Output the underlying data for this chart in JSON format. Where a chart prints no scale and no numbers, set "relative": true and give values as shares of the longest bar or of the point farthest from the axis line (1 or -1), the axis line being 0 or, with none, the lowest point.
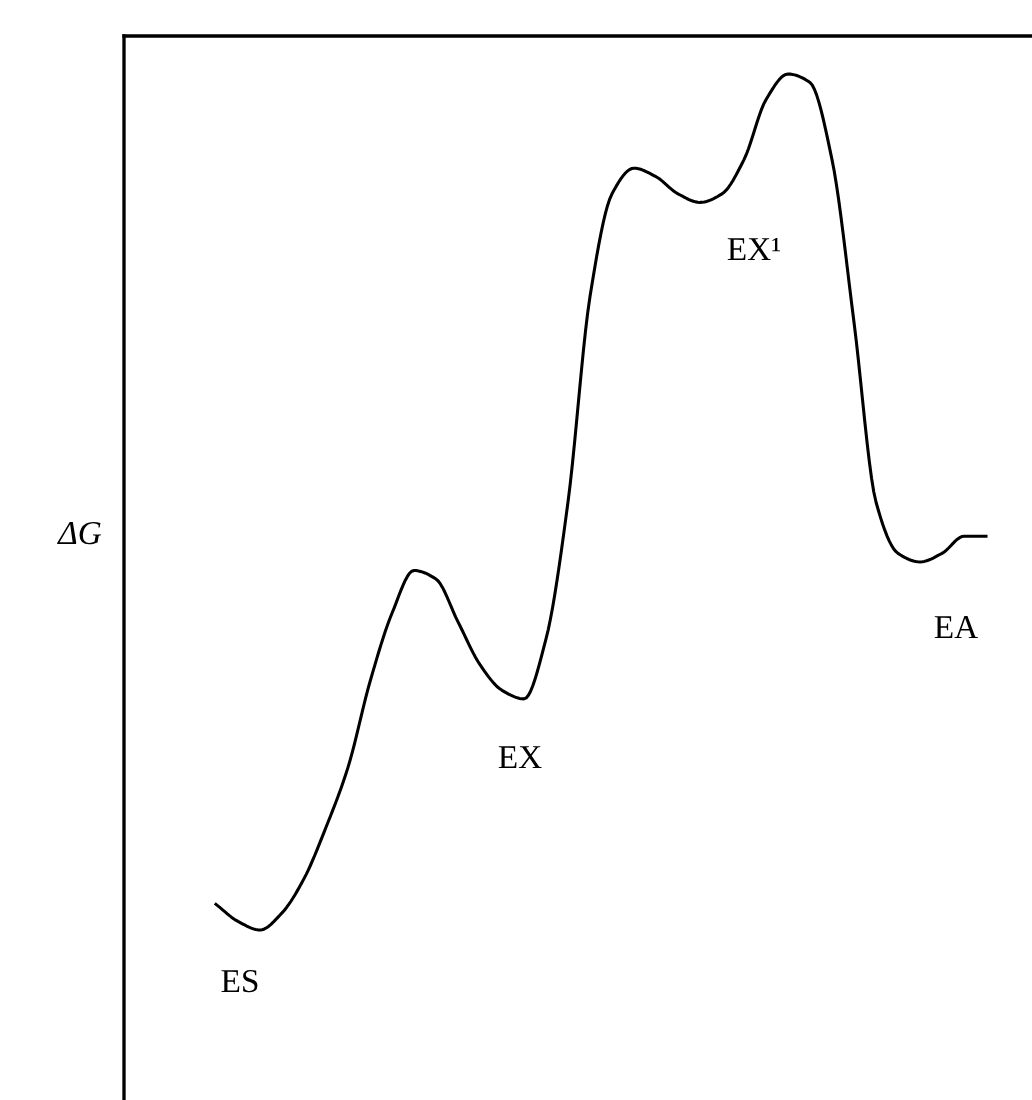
{
  "chart_data": {
    "type": "line",
    "relative": true,
    "ylabel": "ΔG",
    "color": "#000000",
    "categories": [
      null,
      null,
      null,
      null,
      null,
      null,
      null,
      null,
      null,
      null,
      null,
      null,
      null,
      null,
      null,
      null,
      null,
      null,
      null,
      null,
      null,
      null,
      null,
      null,
      null,
      null,
      null,
      null,
      null,
      null,
      null,
      null,
      null,
      null,
      null,
      null
    ],
    "values": [
      0.03,
      0.01,
      0,
      0.02,
      0.06,
      0.12,
      0.19,
      0.29,
      0.37,
      0.42,
      0.41,
      0.36,
      0.31,
      0.28,
      0.27,
      0.34,
      0.5,
      0.74,
      0.86,
      0.89,
      0.88,
      0.86,
      0.85,
      0.86,
      0.9,
      0.97,
      1.0,
      0.99,
      0.9,
      0.71,
      0.5,
      0.44,
      0.43,
      0.44,
      0.46,
      0.46
    ],
    "annotations": [
      "ES",
      "EX",
      "EX¹",
      "EA"
    ],
    "marker": "none",
    "line_style": "solid"
  }
}
